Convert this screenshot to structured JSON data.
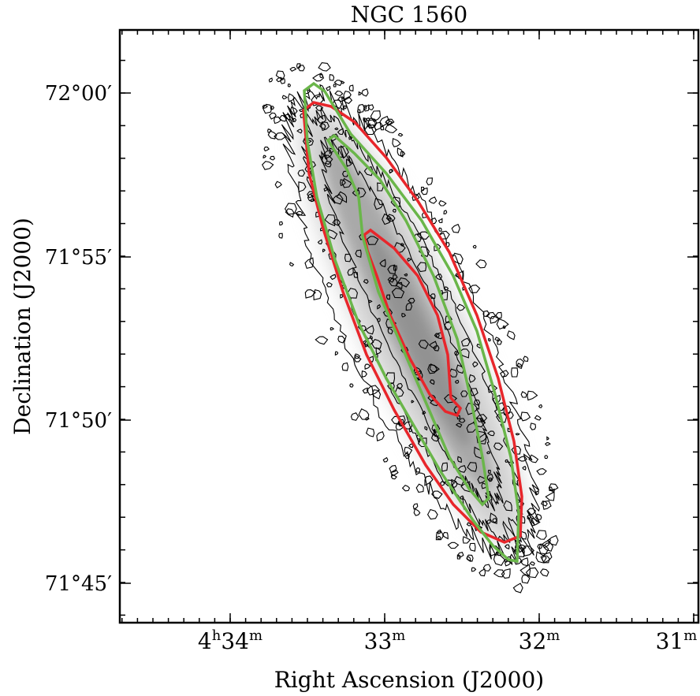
{
  "figure": {
    "title": "NGC 1560",
    "x_label": "Right Ascension (J2000)",
    "y_label": "Declination (J2000)",
    "x_ticks": [
      [
        "4",
        "h",
        "34",
        "m"
      ],
      [
        "33",
        "m"
      ],
      [
        "32",
        "m"
      ],
      [
        "31",
        "m"
      ]
    ],
    "y_ticks": [
      "72°00′",
      "71°55′",
      "71°50′",
      "71°45′"
    ]
  }
}
